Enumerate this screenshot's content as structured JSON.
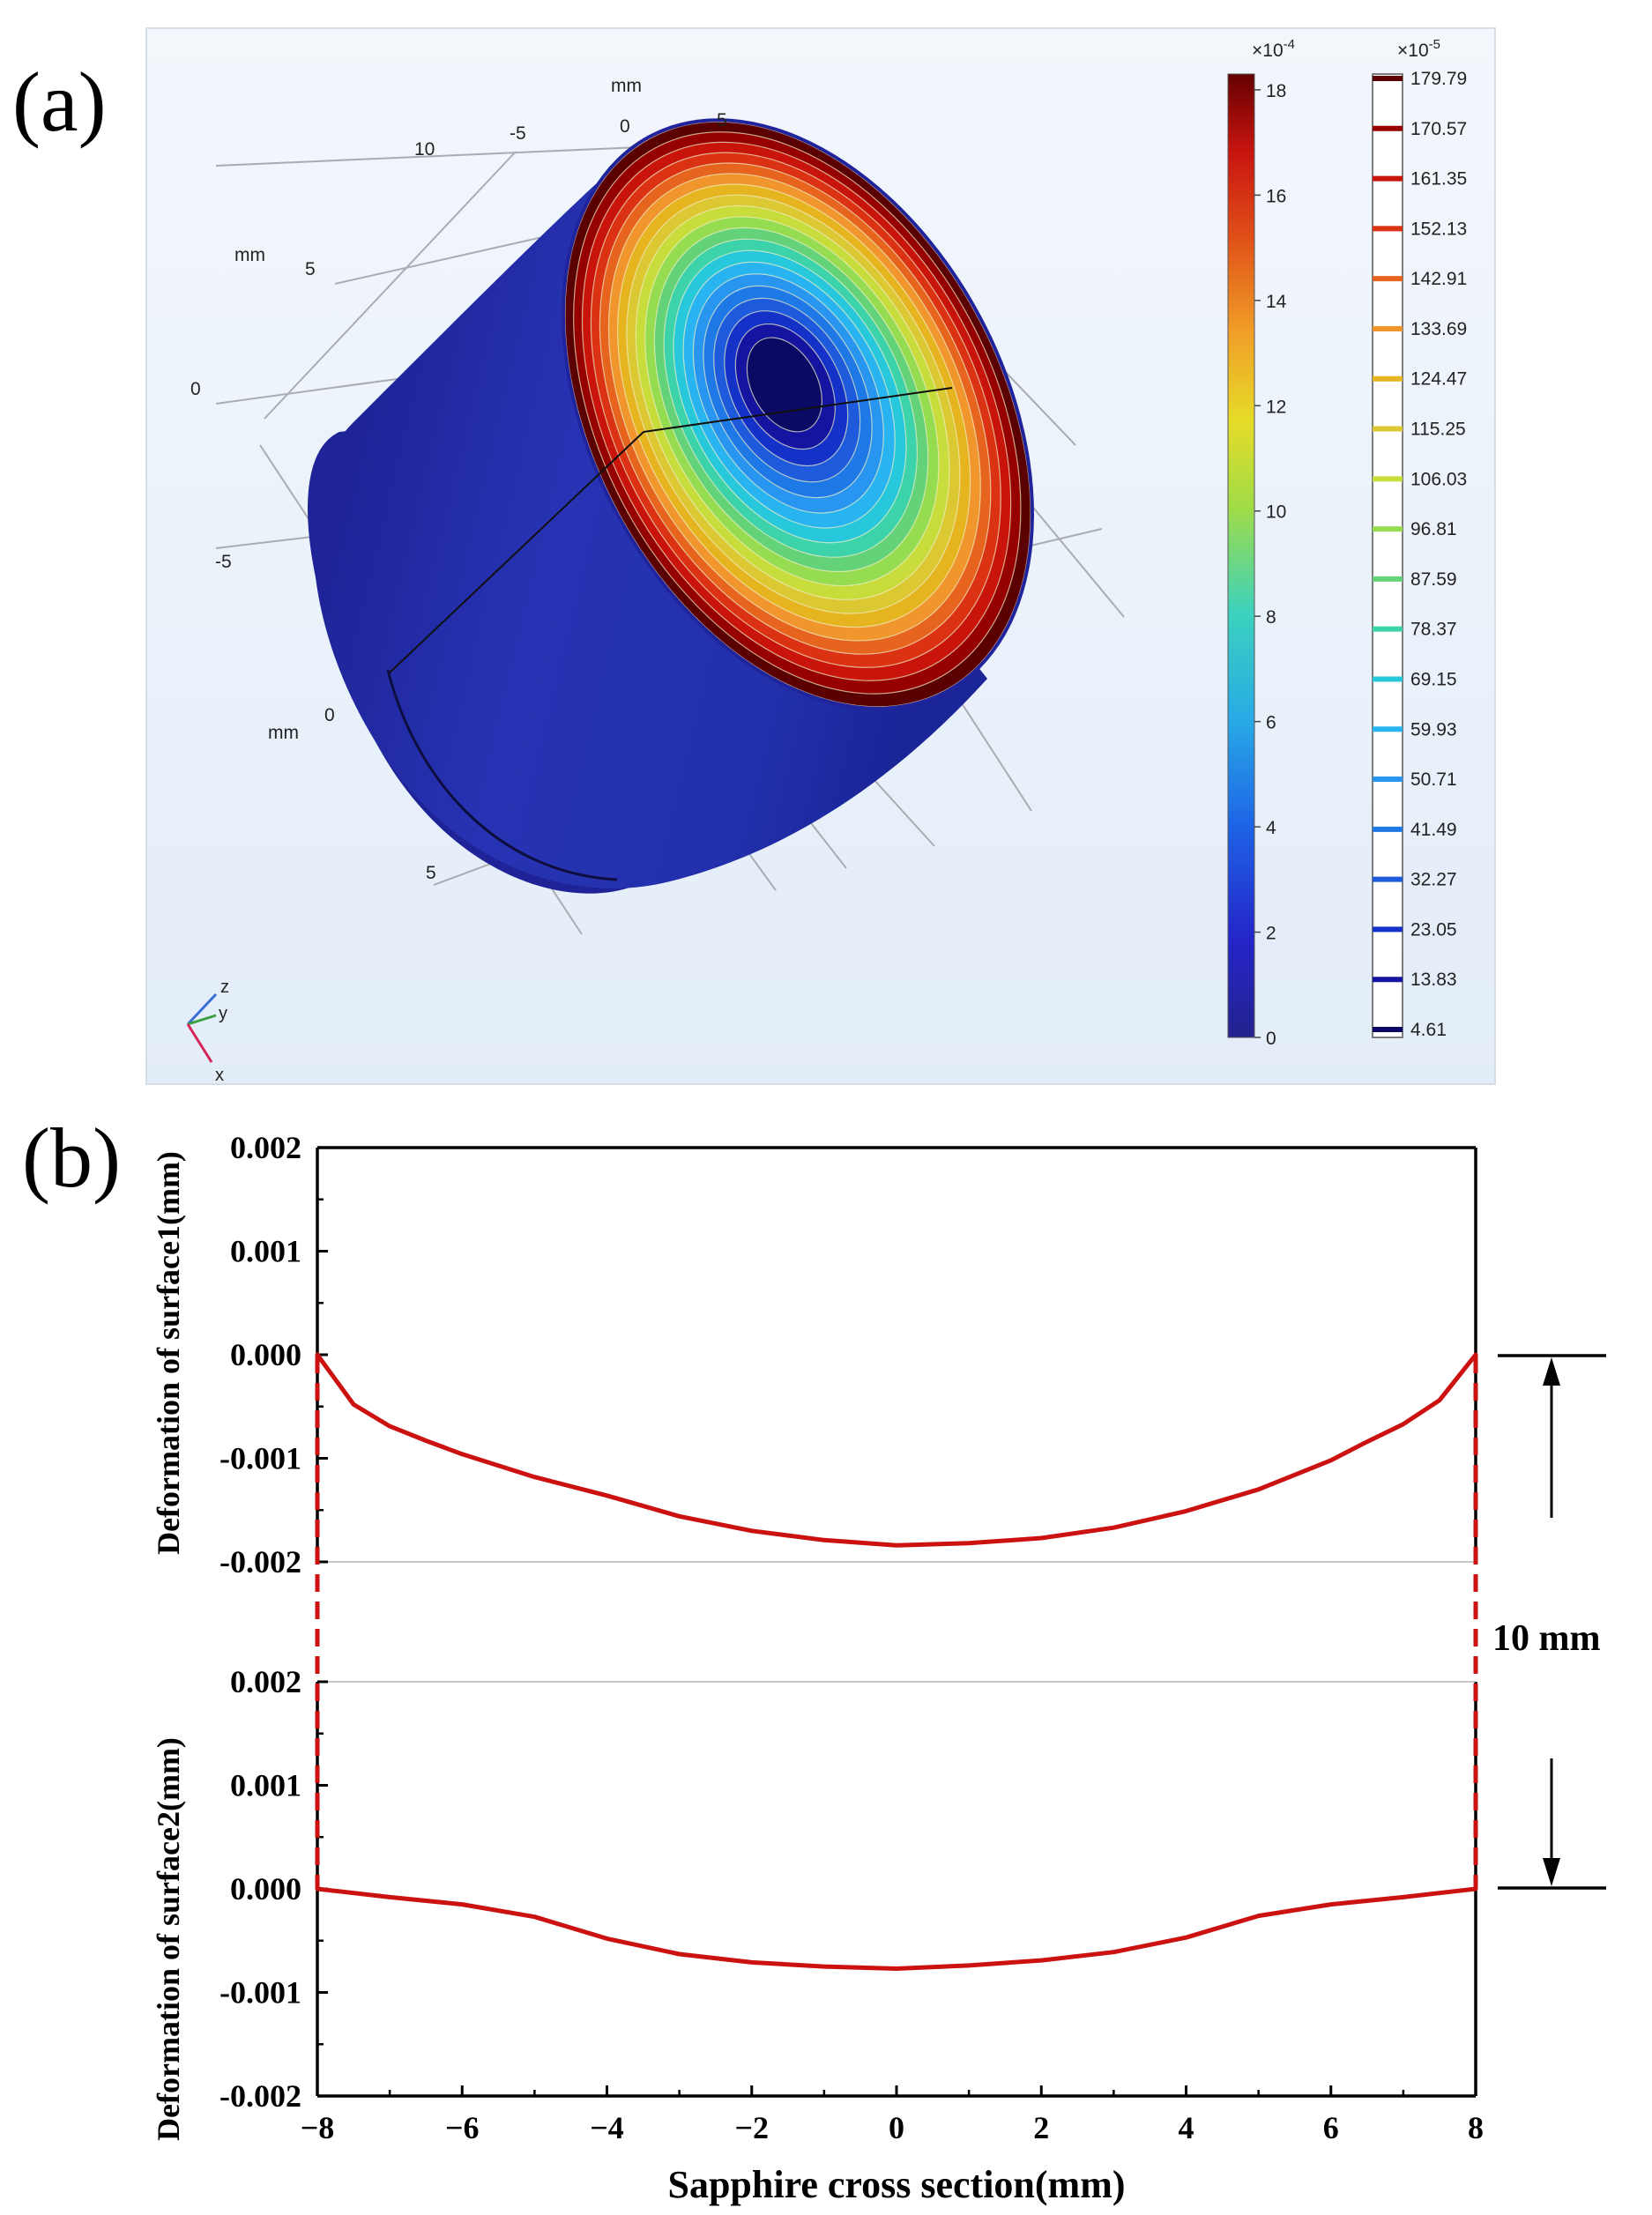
{
  "panel_labels": {
    "a": "(a)",
    "b": "(b)"
  },
  "simulation": {
    "axis_unit": "mm",
    "top_ticks": [
      "10",
      "-5",
      "0",
      "5"
    ],
    "left_ticks": [
      "5",
      "0",
      "-5"
    ],
    "front_ticks": [
      "0",
      "5"
    ],
    "colorbar1": {
      "exponent_base": "×10",
      "exponent_power": "-4",
      "ticks": [
        "18",
        "16",
        "14",
        "12",
        "10",
        "8",
        "6",
        "4",
        "2",
        "0"
      ],
      "max_value": 18.3
    },
    "colorbar2": {
      "exponent_base": "×10",
      "exponent_power": "-5",
      "levels": [
        "179.79",
        "170.57",
        "161.35",
        "152.13",
        "142.91",
        "133.69",
        "124.47",
        "115.25",
        "106.03",
        "96.81",
        "87.59",
        "78.37",
        "69.15",
        "59.93",
        "50.71",
        "41.49",
        "32.27",
        "23.05",
        "13.83",
        "4.61"
      ],
      "level_colors": [
        "#5a0000",
        "#960000",
        "#c8140a",
        "#dc3214",
        "#e6641e",
        "#f0962d",
        "#e6b41e",
        "#dcc832",
        "#c8dc3c",
        "#96dc50",
        "#64d278",
        "#3cd2aa",
        "#28c8dc",
        "#28b4f0",
        "#2896f0",
        "#1e78e6",
        "#1e5adc",
        "#1432c8",
        "#1414a0",
        "#0a0a64"
      ]
    },
    "axes_triad": {
      "z": "z",
      "y": "y",
      "x": "x"
    }
  },
  "chart_data": {
    "type": "line",
    "xlabel": "Sapphire cross section(mm)",
    "xlim": [
      -8,
      8
    ],
    "x_ticks": [
      "−8",
      "−6",
      "−4",
      "−2",
      "0",
      "2",
      "4",
      "6",
      "8"
    ],
    "dimension_label": "10 mm",
    "color": "#cc1111",
    "subplots": [
      {
        "name": "surface1",
        "ylabel": "Deformation of surface1(mm)",
        "ylim": [
          -0.002,
          0.002
        ],
        "y_ticks": [
          "0.002",
          "0.001",
          "0.000",
          "-0.001",
          "-0.002"
        ],
        "x": [
          -8,
          -7.5,
          -7,
          -6.5,
          -6,
          -5,
          -4,
          -3,
          -2,
          -1,
          0,
          1,
          2,
          3,
          4,
          5,
          6,
          6.5,
          7,
          7.5,
          8
        ],
        "y": [
          0.0,
          -0.00048,
          -0.00069,
          -0.00083,
          -0.00096,
          -0.00118,
          -0.00136,
          -0.00156,
          -0.0017,
          -0.00179,
          -0.00184,
          -0.00182,
          -0.00177,
          -0.00167,
          -0.00151,
          -0.0013,
          -0.00102,
          -0.00084,
          -0.00067,
          -0.00044,
          0.0
        ]
      },
      {
        "name": "surface2",
        "ylabel": "Deformation of surface2(mm)",
        "ylim": [
          -0.002,
          0.002
        ],
        "y_ticks": [
          "0.002",
          "0.001",
          "0.000",
          "-0.001",
          "-0.002"
        ],
        "x": [
          -8,
          -7,
          -6,
          -5,
          -4,
          -3,
          -2,
          -1,
          0,
          1,
          2,
          3,
          4,
          5,
          6,
          7,
          8
        ],
        "y": [
          0.0,
          -8e-05,
          -0.00015,
          -0.00027,
          -0.00048,
          -0.00063,
          -0.00071,
          -0.00075,
          -0.00077,
          -0.00074,
          -0.00069,
          -0.00061,
          -0.00047,
          -0.00026,
          -0.00015,
          -8e-05,
          0.0
        ]
      }
    ]
  }
}
